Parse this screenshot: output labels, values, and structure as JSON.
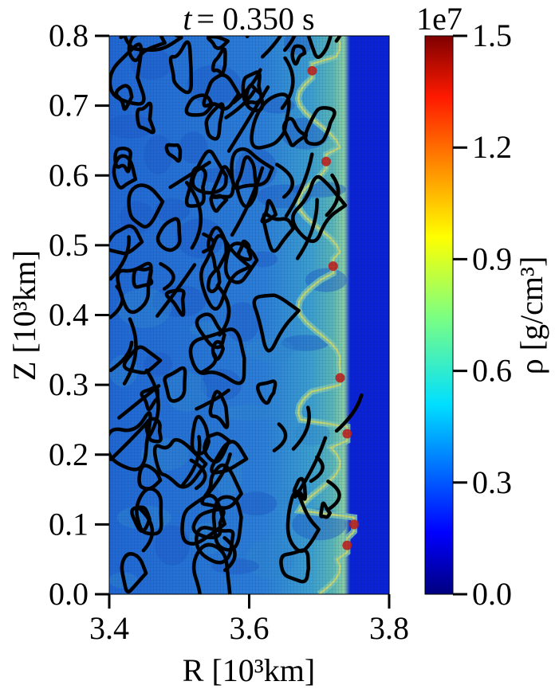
{
  "chart_data": {
    "type": "heatmap",
    "title": "t = 0.350 s",
    "title_var": "t",
    "title_value": "= 0.350 s",
    "xlabel": "R [10³km]",
    "ylabel": "Z [10³km]",
    "xlim": [
      3.4,
      3.8
    ],
    "ylim": [
      0.0,
      0.8
    ],
    "xticks": [
      "3.4",
      "3.6",
      "3.8"
    ],
    "yticks": [
      "0.0",
      "0.1",
      "0.2",
      "0.3",
      "0.4",
      "0.5",
      "0.6",
      "0.7",
      "0.8"
    ],
    "colorbar": {
      "label": "ρ [g/cm³]",
      "multiplier": "1e7",
      "range": [
        0.0,
        1.5
      ],
      "ticks": [
        "0.0",
        "0.3",
        "0.6",
        "0.9",
        "1.2",
        "1.5"
      ],
      "colormap": "jet"
    },
    "contours": {
      "color": "#000000"
    },
    "front_R_estimate": 3.74,
    "front_peaks": [
      {
        "R": 3.69,
        "Z": 0.75
      },
      {
        "R": 3.71,
        "Z": 0.62
      },
      {
        "R": 3.72,
        "Z": 0.47
      },
      {
        "R": 3.73,
        "Z": 0.31
      },
      {
        "R": 3.74,
        "Z": 0.23
      },
      {
        "R": 3.75,
        "Z": 0.1
      },
      {
        "R": 3.74,
        "Z": 0.07
      }
    ]
  },
  "colors": {
    "background_field": "#1f6bd6",
    "inner_field": "#1a5fcf",
    "outer_low_density": "#0a22d8",
    "front_band": "#7ec8b0",
    "peak": "#c0201a"
  }
}
